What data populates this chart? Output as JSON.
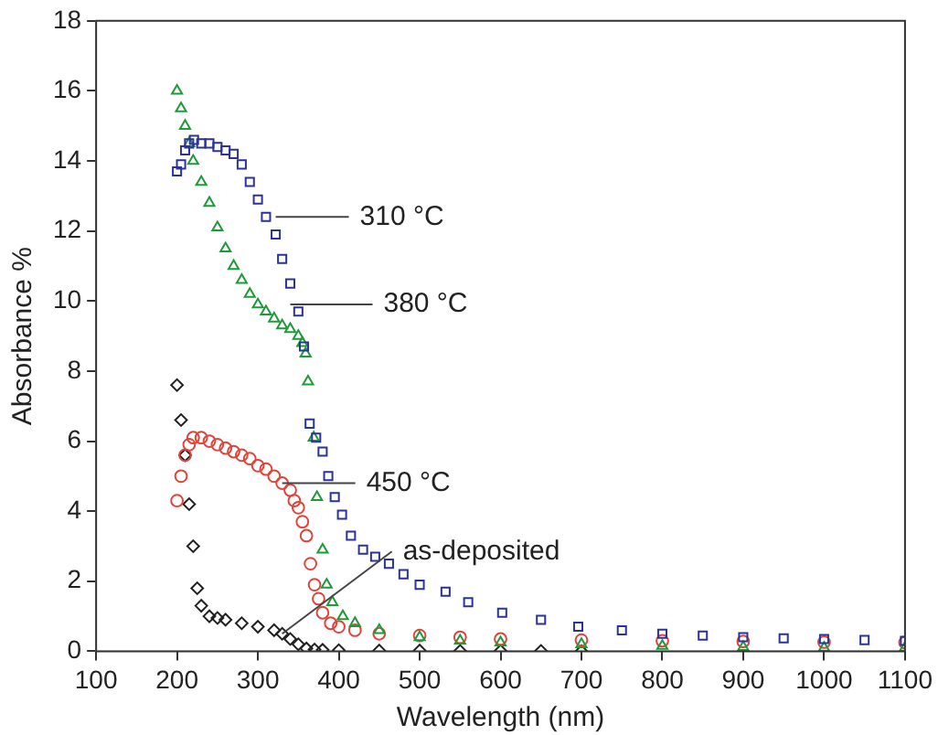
{
  "chart_data": {
    "type": "scatter",
    "xlabel": "Wavelength (nm)",
    "ylabel": "Absorbance %",
    "xlim": [
      100,
      1100
    ],
    "ylim": [
      0,
      18
    ],
    "xticks": [
      100,
      200,
      300,
      400,
      500,
      600,
      700,
      800,
      900,
      1000,
      1100
    ],
    "yticks": [
      0,
      2,
      4,
      6,
      8,
      10,
      12,
      14,
      16,
      18
    ],
    "grid": false,
    "legend": false,
    "series": [
      {
        "color": "#2b3399",
        "marker": "square",
        "x": [
          200,
          205,
          210,
          215,
          221,
          230,
          240,
          250,
          260,
          270,
          280,
          290,
          300,
          310,
          322,
          330,
          340,
          350,
          357,
          364,
          372,
          380,
          387,
          395,
          404,
          415,
          430,
          445,
          462,
          480,
          500,
          532,
          560,
          602,
          650,
          696,
          750,
          800,
          850,
          900,
          950,
          1000,
          1050,
          1100
        ],
        "values": [
          13.7,
          13.9,
          14.3,
          14.5,
          14.6,
          14.5,
          14.5,
          14.4,
          14.3,
          14.2,
          13.9,
          13.4,
          12.9,
          12.4,
          11.9,
          11.2,
          10.5,
          9.7,
          8.7,
          6.5,
          6.1,
          5.7,
          5.0,
          4.4,
          3.9,
          3.3,
          2.9,
          2.7,
          2.5,
          2.2,
          1.9,
          1.7,
          1.4,
          1.1,
          0.9,
          0.7,
          0.6,
          0.5,
          0.45,
          0.4,
          0.37,
          0.35,
          0.32,
          0.3
        ]
      },
      {
        "color": "#1f9a3a",
        "marker": "triangle",
        "x": [
          200,
          205,
          210,
          215,
          220,
          230,
          240,
          250,
          260,
          270,
          280,
          290,
          300,
          310,
          320,
          330,
          340,
          350,
          355,
          359,
          362,
          369,
          373,
          380,
          385,
          392,
          405,
          420,
          450,
          500,
          550,
          600,
          700,
          800,
          900,
          1000,
          1100
        ],
        "values": [
          16,
          15.5,
          15,
          14.5,
          14,
          13.4,
          12.8,
          12.1,
          11.5,
          11,
          10.6,
          10.2,
          9.9,
          9.7,
          9.5,
          9.3,
          9.2,
          9,
          8.8,
          8.5,
          7.7,
          6.1,
          4.4,
          2.9,
          1.9,
          1.4,
          1.0,
          0.8,
          0.6,
          0.4,
          0.3,
          0.25,
          0.2,
          0.15,
          0.12,
          0.1,
          0.1
        ]
      },
      {
        "color": "#e0443a",
        "marker": "circle",
        "x": [
          200,
          205,
          210,
          215,
          220,
          230,
          240,
          250,
          260,
          270,
          280,
          290,
          300,
          310,
          320,
          330,
          340,
          345,
          350,
          355,
          360,
          365,
          370,
          375,
          380,
          390,
          400,
          420,
          450,
          500,
          550,
          600,
          700,
          800,
          900,
          1000,
          1100
        ],
        "values": [
          4.3,
          5.0,
          5.6,
          5.9,
          6.1,
          6.1,
          6.0,
          5.9,
          5.8,
          5.7,
          5.6,
          5.5,
          5.3,
          5.2,
          5.0,
          4.8,
          4.6,
          4.3,
          4.1,
          3.7,
          3.3,
          2.5,
          1.9,
          1.5,
          1.1,
          0.8,
          0.7,
          0.6,
          0.5,
          0.45,
          0.4,
          0.35,
          0.32,
          0.3,
          0.28,
          0.26,
          0.25
        ]
      },
      {
        "color": "#222222",
        "marker": "diamond",
        "x": [
          200,
          205,
          210,
          215,
          220,
          225,
          230,
          240,
          250,
          260,
          280,
          300,
          320,
          330,
          340,
          350,
          360,
          370,
          380,
          400,
          450,
          500,
          550,
          600,
          650,
          700
        ],
        "values": [
          7.6,
          6.6,
          5.6,
          4.2,
          3.0,
          1.8,
          1.3,
          1.0,
          0.95,
          0.9,
          0.8,
          0.7,
          0.6,
          0.5,
          0.35,
          0.2,
          0.08,
          0.05,
          0.04,
          0.03,
          0.02,
          0.02,
          0.01,
          0.01,
          0.01,
          0
        ]
      }
    ],
    "annotations": [
      {
        "text": "310 °C",
        "x": 322,
        "y": 12.4
      },
      {
        "text": "380 °C",
        "x": 340,
        "y": 9.9
      },
      {
        "text": "450 °C",
        "x": 330,
        "y": 4.8
      },
      {
        "text": "as-deposited",
        "x": 330,
        "y": 0.5
      }
    ]
  }
}
